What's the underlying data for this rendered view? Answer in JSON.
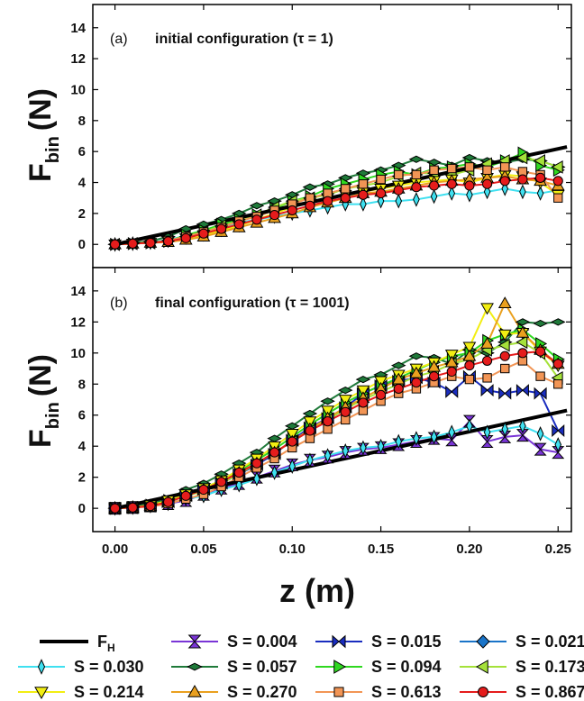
{
  "chart_data": [
    {
      "type": "line",
      "panel_label": "(a)",
      "annotation": "initial configuration (τ = 1)",
      "ylabel_main": "F",
      "ylabel_sub": "bin",
      "ylabel_unit": "(N)",
      "xlim": [
        -0.0125,
        0.2575
      ],
      "ylim": [
        -1.5,
        15.5
      ],
      "yticks": [
        "0",
        "2",
        "4",
        "6",
        "8",
        "10",
        "12",
        "14"
      ],
      "grid": false,
      "reference_line": {
        "name": "F_H",
        "x": [
          0.0,
          0.255
        ],
        "y": [
          0.0,
          6.3
        ]
      },
      "series": [
        {
          "key": "s0030",
          "values": [
            0,
            0.05,
            0.12,
            0.3,
            0.55,
            0.8,
            1.1,
            1.4,
            1.6,
            1.8,
            2.0,
            2.2,
            2.4,
            2.6,
            2.6,
            2.8,
            2.8,
            2.9,
            3.1,
            3.3,
            3.2,
            3.4,
            3.6,
            3.4,
            3.3,
            3.5
          ]
        },
        {
          "key": "s0057",
          "values": [
            0,
            0.1,
            0.2,
            0.5,
            1.0,
            1.3,
            1.6,
            2.0,
            2.5,
            2.8,
            3.2,
            3.7,
            3.9,
            4.3,
            4.6,
            4.8,
            5.1,
            5.5,
            5.3,
            5.1,
            5.6,
            5.4,
            5.3,
            5.5,
            5.4,
            5.0
          ]
        },
        {
          "key": "s0094",
          "values": [
            0,
            0.05,
            0.1,
            0.2,
            0.6,
            0.9,
            1.3,
            1.6,
            1.9,
            2.3,
            2.8,
            3.1,
            3.6,
            3.9,
            4.2,
            4.5,
            4.7,
            4.5,
            4.9,
            5.0,
            5.2,
            5.0,
            5.4,
            5.9,
            5.1,
            4.8
          ]
        },
        {
          "key": "s0173",
          "values": [
            0,
            0.05,
            0.1,
            0.25,
            0.5,
            0.8,
            1.2,
            1.5,
            1.9,
            2.4,
            2.8,
            3.0,
            3.2,
            3.6,
            3.8,
            4.0,
            4.4,
            4.6,
            4.6,
            4.5,
            4.8,
            5.2,
            5.4,
            5.6,
            5.4,
            5.0
          ]
        },
        {
          "key": "s0214",
          "values": [
            0,
            0.05,
            0.1,
            0.2,
            0.4,
            0.6,
            0.9,
            1.2,
            1.6,
            2.0,
            2.4,
            2.7,
            3.0,
            3.2,
            3.4,
            3.6,
            3.8,
            4.0,
            4.1,
            4.2,
            4.0,
            4.3,
            4.5,
            4.4,
            4.0,
            3.2
          ]
        },
        {
          "key": "s0270",
          "values": [
            0,
            0.05,
            0.1,
            0.15,
            0.3,
            0.5,
            0.8,
            1.1,
            1.4,
            1.7,
            2.0,
            2.4,
            2.7,
            3.0,
            3.3,
            3.4,
            3.6,
            3.8,
            4.0,
            4.1,
            4.2,
            4.3,
            4.4,
            4.2,
            4.1,
            3.8
          ]
        },
        {
          "key": "s0613",
          "values": [
            0,
            0.05,
            0.1,
            0.25,
            0.5,
            0.8,
            1.1,
            1.5,
            1.8,
            2.2,
            2.6,
            3.0,
            3.3,
            3.6,
            3.9,
            4.2,
            4.5,
            4.5,
            4.8,
            4.9,
            5.0,
            4.8,
            5.0,
            4.7,
            4.5,
            3.0
          ]
        },
        {
          "key": "s0867",
          "values": [
            0,
            0.05,
            0.1,
            0.2,
            0.4,
            0.7,
            1.0,
            1.3,
            1.6,
            1.9,
            2.2,
            2.5,
            2.8,
            3.0,
            3.2,
            3.3,
            3.5,
            3.7,
            3.8,
            3.9,
            3.8,
            3.9,
            4.1,
            4.2,
            4.3,
            4.1
          ]
        }
      ]
    },
    {
      "type": "line",
      "panel_label": "(b)",
      "annotation": "final configuration (τ = 1001)",
      "ylabel_main": "F",
      "ylabel_sub": "bin",
      "ylabel_unit": "(N)",
      "xlim": [
        -0.0125,
        0.2575
      ],
      "ylim": [
        -1.5,
        15.5
      ],
      "yticks": [
        "0",
        "2",
        "4",
        "6",
        "8",
        "10",
        "12",
        "14"
      ],
      "xticks": [
        "0.00",
        "0.05",
        "0.10",
        "0.15",
        "0.20",
        "0.25"
      ],
      "xlabel": "z (m)",
      "grid": false,
      "reference_line": {
        "name": "F_H",
        "x": [
          0.0,
          0.255
        ],
        "y": [
          0.0,
          6.3
        ]
      },
      "series": [
        {
          "key": "s0004",
          "values": [
            0,
            0.05,
            0.15,
            0.3,
            0.5,
            0.9,
            1.3,
            1.6,
            2.0,
            2.4,
            2.8,
            3.1,
            3.3,
            3.6,
            3.8,
            3.9,
            4.1,
            4.3,
            4.5,
            4.4,
            5.6,
            4.3,
            4.6,
            4.7,
            3.8,
            3.6
          ]
        },
        {
          "key": "s0015",
          "values": [
            0,
            0.05,
            0.15,
            0.4,
            0.8,
            1.2,
            1.6,
            2.2,
            2.8,
            3.5,
            4.4,
            5.2,
            5.8,
            6.5,
            7.4,
            7.9,
            8.2,
            8.4,
            8.1,
            7.5,
            8.5,
            7.6,
            7.4,
            7.6,
            7.4,
            5.0
          ]
        },
        {
          "key": "s0030",
          "values": [
            0,
            0.05,
            0.15,
            0.3,
            0.6,
            0.8,
            1.2,
            1.5,
            1.9,
            2.3,
            2.7,
            3.1,
            3.4,
            3.7,
            3.9,
            4.0,
            4.3,
            4.5,
            4.6,
            4.9,
            5.3,
            4.9,
            5.1,
            5.3,
            4.8,
            4.1
          ]
        },
        {
          "key": "s0057",
          "values": [
            0,
            0.1,
            0.3,
            0.6,
            1.2,
            1.6,
            2.2,
            2.9,
            3.6,
            4.5,
            5.3,
            6.1,
            6.9,
            7.6,
            8.3,
            8.6,
            9.2,
            9.8,
            9.7,
            9.3,
            10.2,
            10.0,
            10.7,
            12.0,
            11.9,
            12.0
          ]
        },
        {
          "key": "s0094",
          "values": [
            0,
            0.05,
            0.2,
            0.5,
            0.9,
            1.3,
            1.8,
            2.4,
            3.1,
            3.8,
            4.6,
            5.4,
            6.1,
            6.8,
            7.4,
            7.9,
            8.4,
            8.9,
            9.4,
            9.8,
            10.0,
            10.8,
            11.2,
            11.5,
            10.6,
            9.6
          ]
        },
        {
          "key": "s0173",
          "values": [
            0,
            0.05,
            0.15,
            0.4,
            0.8,
            1.1,
            1.6,
            2.2,
            2.9,
            3.6,
            4.3,
            5.0,
            5.7,
            6.4,
            7.0,
            7.5,
            8.0,
            8.5,
            8.8,
            9.3,
            9.6,
            10.2,
            10.5,
            10.7,
            10.0,
            8.4
          ]
        },
        {
          "key": "s0214",
          "values": [
            0,
            0.05,
            0.2,
            0.5,
            0.9,
            1.3,
            1.8,
            2.5,
            3.2,
            4.0,
            4.8,
            5.6,
            6.3,
            7.0,
            7.6,
            8.2,
            8.6,
            9.0,
            9.4,
            9.9,
            10.4,
            12.9,
            11.2,
            11.3,
            10.1,
            9.2
          ]
        },
        {
          "key": "s0270",
          "values": [
            0,
            0.05,
            0.15,
            0.4,
            0.8,
            1.2,
            1.7,
            2.3,
            2.9,
            3.6,
            4.3,
            5.1,
            5.8,
            6.5,
            7.1,
            7.7,
            8.3,
            8.7,
            9.1,
            9.4,
            9.8,
            10.6,
            13.2,
            11.3,
            10.2,
            9.3
          ]
        },
        {
          "key": "s0613",
          "values": [
            0,
            0.05,
            0.1,
            0.3,
            0.6,
            0.9,
            1.4,
            2.0,
            2.6,
            3.2,
            3.9,
            4.5,
            5.1,
            5.7,
            6.3,
            6.9,
            7.4,
            7.7,
            8.1,
            8.5,
            8.3,
            8.4,
            9.0,
            9.5,
            8.5,
            8.0
          ]
        },
        {
          "key": "s0867",
          "values": [
            0,
            0.05,
            0.15,
            0.4,
            0.8,
            1.2,
            1.7,
            2.3,
            2.9,
            3.6,
            4.3,
            5.0,
            5.6,
            6.2,
            6.8,
            7.3,
            7.7,
            8.1,
            8.5,
            8.8,
            9.2,
            9.5,
            9.8,
            10.0,
            10.1,
            9.3
          ]
        }
      ]
    }
  ],
  "x_values": [
    0.0,
    0.01,
    0.02,
    0.03,
    0.04,
    0.05,
    0.06,
    0.07,
    0.08,
    0.09,
    0.1,
    0.11,
    0.12,
    0.13,
    0.14,
    0.15,
    0.16,
    0.17,
    0.18,
    0.19,
    0.2,
    0.21,
    0.22,
    0.23,
    0.24,
    0.25
  ],
  "legend": [
    {
      "key": "fh",
      "label": "F",
      "sub": "H",
      "marker": "line",
      "color": "#000000"
    },
    {
      "key": "s0004",
      "label": "S = 0.004",
      "marker": "hourglass",
      "color": "#7a35d6"
    },
    {
      "key": "s0015",
      "label": "S = 0.015",
      "marker": "bowtie",
      "color": "#1a2dbf"
    },
    {
      "key": "s0021",
      "label": "S = 0.021",
      "marker": "diamond",
      "color": "#1a74c8"
    },
    {
      "key": "s0030",
      "label": "S = 0.030",
      "marker": "thin-diamond",
      "color": "#3fe0f0"
    },
    {
      "key": "s0057",
      "label": "S = 0.057",
      "marker": "wide-diamond",
      "color": "#1f7a3a"
    },
    {
      "key": "s0094",
      "label": "S = 0.094",
      "marker": "triangle-right",
      "color": "#2fd820"
    },
    {
      "key": "s0173",
      "label": "S = 0.173",
      "marker": "triangle-left",
      "color": "#a5e23a"
    },
    {
      "key": "s0214",
      "label": "S = 0.214",
      "marker": "triangle-down",
      "color": "#f2ee12"
    },
    {
      "key": "s0270",
      "label": "S = 0.270",
      "marker": "triangle-up",
      "color": "#eaa01e"
    },
    {
      "key": "s0613",
      "label": "S = 0.613",
      "marker": "square",
      "color": "#f29555"
    },
    {
      "key": "s0867",
      "label": "S = 0.867",
      "marker": "circle",
      "color": "#e51c1c"
    }
  ]
}
